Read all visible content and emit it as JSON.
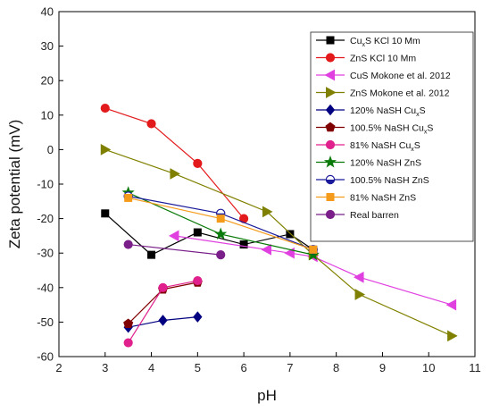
{
  "chart_data": {
    "type": "line",
    "xlabel": "pH",
    "ylabel": "Zeta potential (mV)",
    "xlim": [
      2,
      11
    ],
    "ylim": [
      -60,
      40
    ],
    "xticks": [
      2,
      3,
      4,
      5,
      6,
      7,
      8,
      9,
      10,
      11
    ],
    "yticks": [
      40,
      30,
      20,
      10,
      0,
      -10,
      -20,
      -30,
      -40,
      -50,
      -60
    ],
    "grid": false,
    "legend_position": "top-right",
    "series": [
      {
        "name": "CuxS KCl 10 Mm",
        "label_main": "Cu",
        "label_sub": "x",
        "label_rest": "S KCl 10 Mm",
        "color": "#000000",
        "marker": "square",
        "line": "solid",
        "points": [
          [
            3.0,
            -18.5
          ],
          [
            4.0,
            -30.5
          ],
          [
            5.0,
            -24.0
          ],
          [
            6.0,
            -27.5
          ],
          [
            7.0,
            -24.5
          ],
          [
            7.5,
            -29.0
          ]
        ]
      },
      {
        "name": "ZnS KCl 10 Mm",
        "label_main": "ZnS KCl 10 Mm",
        "color": "#e31a1c",
        "marker": "circle",
        "line": "solid",
        "points": [
          [
            3.0,
            12.0
          ],
          [
            4.0,
            7.5
          ],
          [
            5.0,
            -4.0
          ],
          [
            6.0,
            -20.0
          ]
        ]
      },
      {
        "name": "CuS Mokone et al. 2012",
        "label_main": "CuS Mokone et al. 2012",
        "color": "#e040e0",
        "marker": "triangle-left",
        "line": "solid",
        "points": [
          [
            4.5,
            -25.0
          ],
          [
            6.5,
            -29.0
          ],
          [
            7.0,
            -30.0
          ],
          [
            7.5,
            -31.0
          ],
          [
            8.5,
            -37.0
          ],
          [
            10.5,
            -45.0
          ]
        ]
      },
      {
        "name": "ZnS Mokone et al. 2012",
        "label_main": "ZnS Mokone et al. 2012",
        "color": "#808000",
        "marker": "triangle-right",
        "line": "solid",
        "points": [
          [
            3.0,
            0.0
          ],
          [
            4.5,
            -7.0
          ],
          [
            6.5,
            -18.0
          ],
          [
            7.5,
            -30.5
          ],
          [
            8.5,
            -42.0
          ],
          [
            10.5,
            -54.0
          ]
        ]
      },
      {
        "name": "120% NaSH CuxS",
        "label_main": "120% NaSH Cu",
        "label_sub": "x",
        "label_rest": "S",
        "color": "#000080",
        "marker": "diamond",
        "line": "solid",
        "points": [
          [
            3.5,
            -51.5
          ],
          [
            4.25,
            -49.5
          ],
          [
            5.0,
            -48.5
          ]
        ]
      },
      {
        "name": "100.5% NaSH CuxS",
        "label_main": "100.5% NaSH Cu",
        "label_sub": "x",
        "label_rest": "S",
        "color": "#800000",
        "marker": "pentagon",
        "line": "solid",
        "points": [
          [
            3.5,
            -50.5
          ],
          [
            4.25,
            -40.5
          ],
          [
            5.0,
            -38.5
          ]
        ]
      },
      {
        "name": "81% NaSH CuxS",
        "label_main": "81% NaSH Cu",
        "label_sub": "x",
        "label_rest": "S",
        "color": "#e0208c",
        "marker": "circle",
        "line": "solid",
        "points": [
          [
            3.5,
            -56.0
          ],
          [
            4.25,
            -40.0
          ],
          [
            5.0,
            -38.0
          ]
        ]
      },
      {
        "name": "120% NaSH ZnS",
        "label_main": "120% NaSH ZnS",
        "color": "#0a7a0a",
        "marker": "star",
        "line": "solid",
        "points": [
          [
            3.5,
            -12.5
          ],
          [
            5.5,
            -24.5
          ],
          [
            7.5,
            -30.5
          ]
        ]
      },
      {
        "name": "100.5% NaSH ZnS",
        "label_main": "100.5% NaSH ZnS",
        "color": "#1a1a9a",
        "marker": "half-circle",
        "line": "solid",
        "points": [
          [
            3.5,
            -13.5
          ],
          [
            5.5,
            -18.5
          ],
          [
            7.5,
            -29.0
          ]
        ]
      },
      {
        "name": "81% NaSH ZnS",
        "label_main": "81% NaSH ZnS",
        "color": "#f59b1b",
        "marker": "square",
        "line": "solid",
        "points": [
          [
            3.5,
            -14.0
          ],
          [
            5.5,
            -20.0
          ],
          [
            7.5,
            -29.0
          ]
        ]
      },
      {
        "name": "Real barren",
        "label_main": "Real barren",
        "color": "#7a1f8a",
        "marker": "circle",
        "line": "solid",
        "points": [
          [
            3.5,
            -27.5
          ],
          [
            5.5,
            -30.5
          ]
        ]
      }
    ]
  }
}
